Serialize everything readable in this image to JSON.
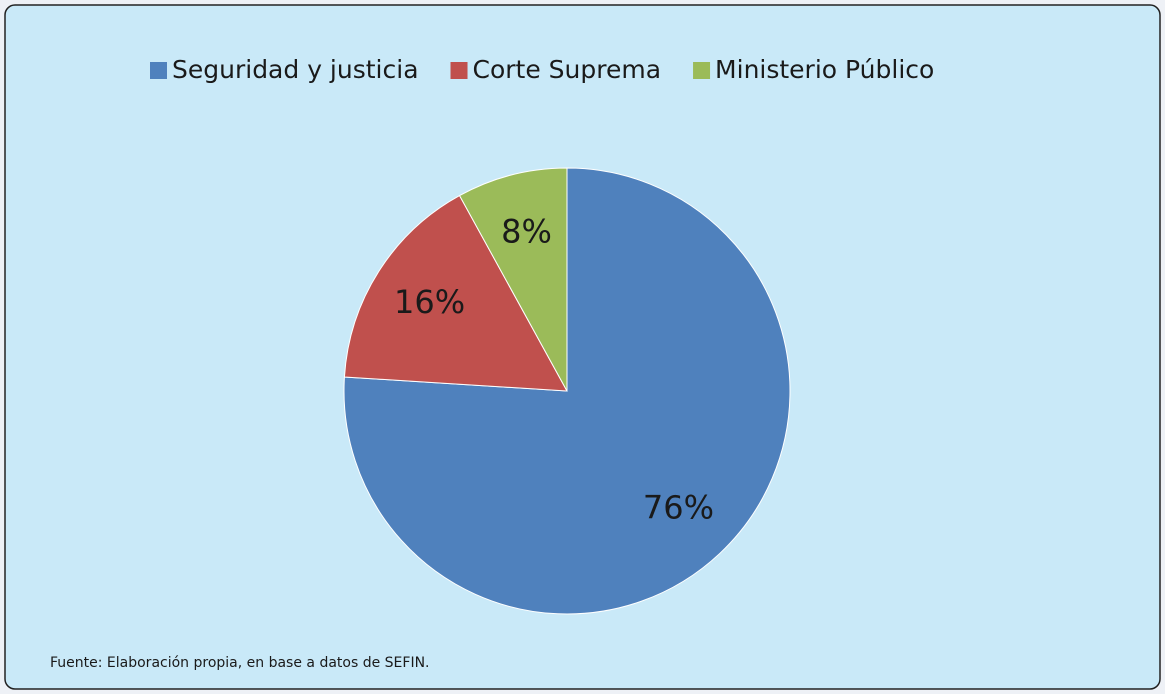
{
  "chart_data": {
    "type": "pie",
    "categories": [
      "Seguridad y justicia",
      "Corte Suprema",
      "Ministerio Público"
    ],
    "values": [
      76,
      16,
      8
    ],
    "value_labels": [
      "76%",
      "16%",
      "8%"
    ],
    "colors": [
      "#4f81bd",
      "#c0504d",
      "#9bbb59"
    ],
    "legend": "top",
    "source": "Fuente: Elaboración propia, en base a datos de SEFIN."
  }
}
